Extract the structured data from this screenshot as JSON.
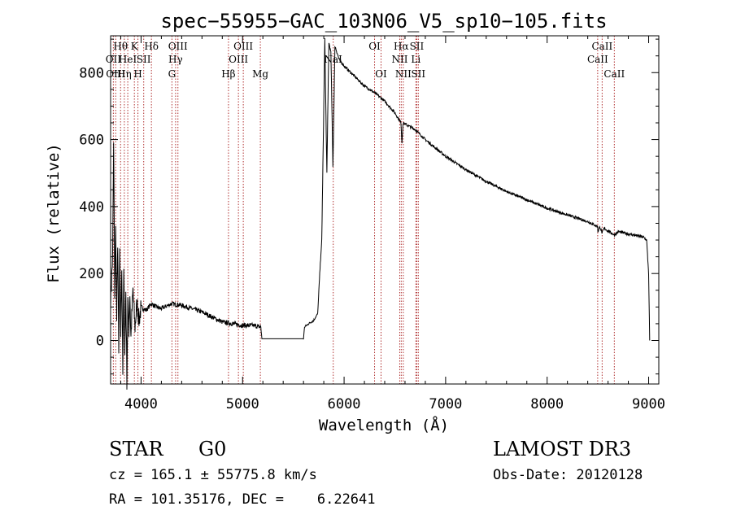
{
  "chart_data": {
    "type": "line",
    "title": "spec−55955−GAC_103N06_V5_sp10−105.fits",
    "xlabel": "Wavelength (Å)",
    "ylabel": "Flux (relative)",
    "xlim": [
      3700,
      9100
    ],
    "ylim": [
      -130,
      910
    ],
    "xticks": [
      4000,
      5000,
      6000,
      7000,
      8000,
      9000
    ],
    "yticks": [
      0,
      200,
      400,
      600,
      800
    ],
    "series": [
      {
        "name": "flux",
        "points": [
          [
            3700,
            120
          ],
          [
            3720,
            250
          ],
          [
            3730,
            580
          ],
          [
            3740,
            140
          ],
          [
            3750,
            330
          ],
          [
            3760,
            60
          ],
          [
            3770,
            300
          ],
          [
            3780,
            -50
          ],
          [
            3790,
            250
          ],
          [
            3800,
            20
          ],
          [
            3810,
            230
          ],
          [
            3820,
            -90
          ],
          [
            3830,
            200
          ],
          [
            3840,
            -30
          ],
          [
            3850,
            150
          ],
          [
            3860,
            -120
          ],
          [
            3870,
            120
          ],
          [
            3880,
            30
          ],
          [
            3890,
            140
          ],
          [
            3900,
            10
          ],
          [
            3920,
            150
          ],
          [
            3940,
            40
          ],
          [
            3960,
            110
          ],
          [
            3980,
            60
          ],
          [
            4000,
            100
          ],
          [
            4050,
            90
          ],
          [
            4100,
            110
          ],
          [
            4150,
            100
          ],
          [
            4200,
            95
          ],
          [
            4300,
            110
          ],
          [
            4400,
            105
          ],
          [
            4500,
            95
          ],
          [
            4600,
            85
          ],
          [
            4700,
            70
          ],
          [
            4800,
            55
          ],
          [
            4900,
            50
          ],
          [
            5000,
            45
          ],
          [
            5100,
            45
          ],
          [
            5180,
            40
          ],
          [
            5190,
            5
          ],
          [
            5600,
            5
          ],
          [
            5610,
            40
          ],
          [
            5650,
            50
          ],
          [
            5700,
            60
          ],
          [
            5740,
            80
          ],
          [
            5760,
            200
          ],
          [
            5780,
            300
          ],
          [
            5800,
            700
          ],
          [
            5810,
            900
          ],
          [
            5830,
            500
          ],
          [
            5850,
            890
          ],
          [
            5870,
            860
          ],
          [
            5890,
            520
          ],
          [
            5910,
            880
          ],
          [
            5950,
            840
          ],
          [
            6000,
            820
          ],
          [
            6100,
            790
          ],
          [
            6200,
            760
          ],
          [
            6300,
            740
          ],
          [
            6400,
            715
          ],
          [
            6500,
            680
          ],
          [
            6560,
            650
          ],
          [
            6570,
            590
          ],
          [
            6580,
            650
          ],
          [
            6700,
            630
          ],
          [
            6800,
            600
          ],
          [
            6900,
            575
          ],
          [
            7000,
            550
          ],
          [
            7200,
            510
          ],
          [
            7400,
            475
          ],
          [
            7600,
            445
          ],
          [
            7800,
            420
          ],
          [
            8000,
            395
          ],
          [
            8200,
            375
          ],
          [
            8400,
            355
          ],
          [
            8498,
            340
          ],
          [
            8500,
            325
          ],
          [
            8520,
            340
          ],
          [
            8542,
            320
          ],
          [
            8560,
            335
          ],
          [
            8662,
            315
          ],
          [
            8700,
            325
          ],
          [
            8800,
            318
          ],
          [
            8900,
            312
          ],
          [
            8950,
            308
          ],
          [
            8980,
            300
          ],
          [
            9000,
            200
          ],
          [
            9010,
            0
          ]
        ]
      }
    ],
    "lines": [
      {
        "wl": 3727,
        "label": "OII",
        "row": 1
      },
      {
        "wl": 3750,
        "label": "OIII",
        "row": 2
      },
      {
        "wl": 3798,
        "label": "Hθ",
        "row": 0
      },
      {
        "wl": 3835,
        "label": "Hη",
        "row": 2
      },
      {
        "wl": 3869,
        "label": "HeI",
        "row": 1
      },
      {
        "wl": 3934,
        "label": "K",
        "row": 0
      },
      {
        "wl": 3969,
        "label": "H",
        "row": 2
      },
      {
        "wl": 4026,
        "label": "SII",
        "row": 1
      },
      {
        "wl": 4102,
        "label": "Hδ",
        "row": 0
      },
      {
        "wl": 4304,
        "label": "G",
        "row": 2
      },
      {
        "wl": 4340,
        "label": "Hγ",
        "row": 1
      },
      {
        "wl": 4363,
        "label": "OIII",
        "row": 0
      },
      {
        "wl": 4861,
        "label": "Hβ",
        "row": 2
      },
      {
        "wl": 4959,
        "label": "OIII",
        "row": 1
      },
      {
        "wl": 5007,
        "label": "OIII",
        "row": 0
      },
      {
        "wl": 5175,
        "label": "Mg",
        "row": 2
      },
      {
        "wl": 5893,
        "label": "NaI",
        "row": 1
      },
      {
        "wl": 6300,
        "label": "OI",
        "row": 0
      },
      {
        "wl": 6364,
        "label": "OI",
        "row": 2
      },
      {
        "wl": 6548,
        "label": "NII",
        "row": 1
      },
      {
        "wl": 6563,
        "label": "Hα",
        "row": 0
      },
      {
        "wl": 6583,
        "label": "NII",
        "row": 2
      },
      {
        "wl": 6707,
        "label": "Li",
        "row": 1
      },
      {
        "wl": 6716,
        "label": "SII",
        "row": 0
      },
      {
        "wl": 6731,
        "label": "SII",
        "row": 2
      },
      {
        "wl": 8498,
        "label": "CaII",
        "row": 1
      },
      {
        "wl": 8542,
        "label": "CaII",
        "row": 0
      },
      {
        "wl": 8662,
        "label": "CaII",
        "row": 2
      }
    ]
  },
  "info": {
    "object_class": "STAR",
    "subclass": "G0",
    "survey": "LAMOST DR3",
    "cz": "cz = 165.1 ± 55775.8 km/s",
    "obs_date": "Obs-Date: 20120128",
    "coords": "RA = 101.35176, DEC =    6.22641"
  },
  "colors": {
    "line_marker": "#b03030",
    "spectrum": "#000000"
  }
}
